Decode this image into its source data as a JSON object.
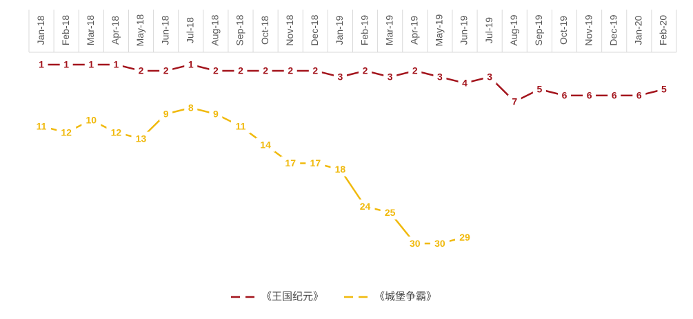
{
  "chart_data": {
    "type": "line",
    "categories": [
      "Jan-18",
      "Feb-18",
      "Mar-18",
      "Apr-18",
      "May-18",
      "Jun-18",
      "Jul-18",
      "Aug-18",
      "Sep-18",
      "Oct-18",
      "Nov-18",
      "Dec-18",
      "Jan-19",
      "Feb-19",
      "Mar-19",
      "Apr-19",
      "May-19",
      "Jun-19",
      "Jul-19",
      "Aug-19",
      "Sep-19",
      "Oct-19",
      "Nov-19",
      "Dec-19",
      "Jan-20",
      "Feb-20"
    ],
    "series": [
      {
        "name": "《王国纪元》",
        "color": "#a3141c",
        "values": [
          1,
          1,
          1,
          1,
          2,
          2,
          1,
          2,
          2,
          2,
          2,
          2,
          3,
          2,
          3,
          2,
          3,
          4,
          3,
          7,
          5,
          6,
          6,
          6,
          6,
          5
        ]
      },
      {
        "name": "《城堡争霸》",
        "color": "#f0b90c",
        "values": [
          11,
          12,
          10,
          12,
          13,
          9,
          8,
          9,
          11,
          14,
          17,
          17,
          18,
          24,
          25,
          30,
          30,
          29,
          null,
          null,
          null,
          null,
          null,
          null,
          null,
          null
        ]
      }
    ],
    "ylim": [
      0,
      35
    ],
    "y_inverted": true,
    "data_labels": true,
    "legend": "bottom"
  }
}
